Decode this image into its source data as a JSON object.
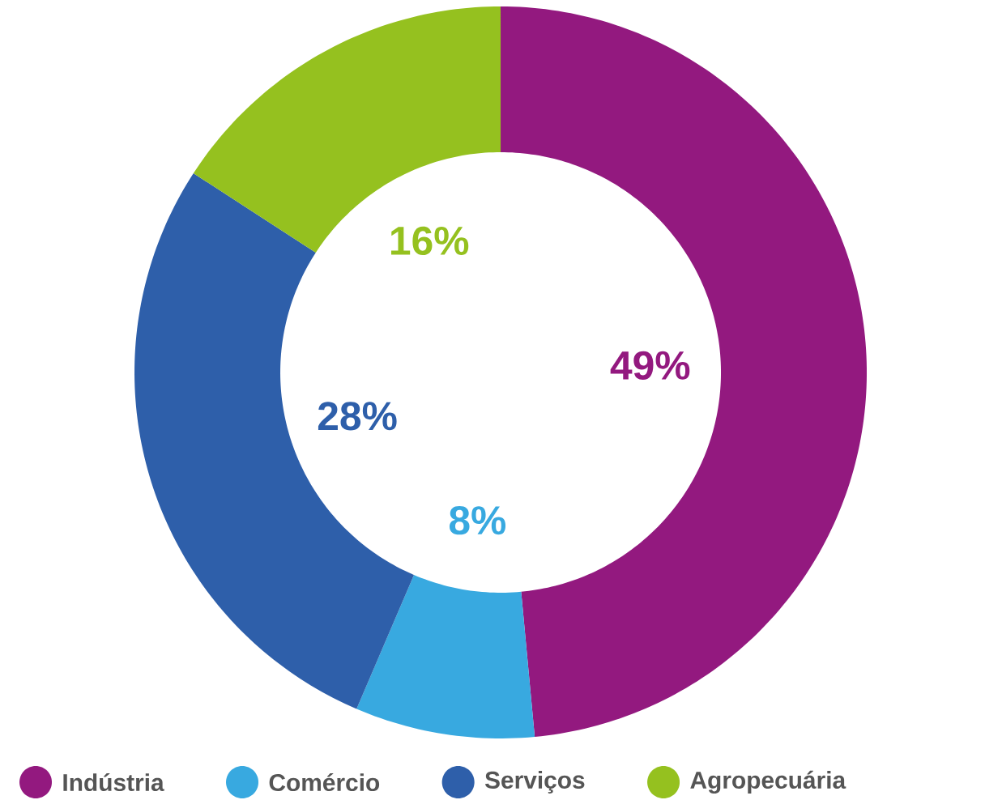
{
  "chart_data": {
    "type": "donut",
    "categories": [
      "Indústria",
      "Comércio",
      "Serviços",
      "Agropecuária"
    ],
    "values": [
      49,
      8,
      28,
      16
    ],
    "colors": [
      "#93197f",
      "#38a9e0",
      "#2e5faa",
      "#95c11f"
    ],
    "value_labels": [
      "49%",
      "8%",
      "28%",
      "16%"
    ],
    "legend": "bottom"
  }
}
